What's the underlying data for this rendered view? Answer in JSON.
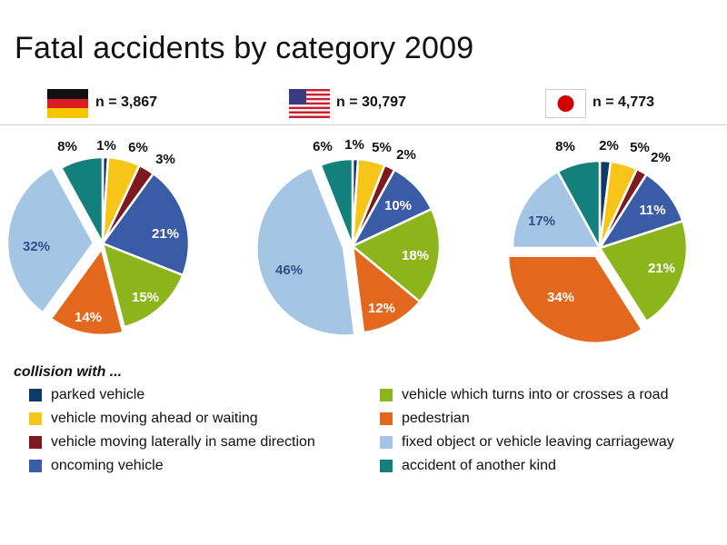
{
  "title": "Fatal accidents by category 2009",
  "legend_title": "collision with ...",
  "colors": {
    "parked": "#0f3a66",
    "ahead": "#f6c518",
    "lateral": "#7d1a1e",
    "oncoming": "#3a5ba6",
    "turns": "#8cb51c",
    "pedestrian": "#e3681e",
    "fixed": "#a4c6e4",
    "other": "#14807c"
  },
  "chart_data": [
    {
      "type": "pie",
      "country": "Germany",
      "flag_icon": "germany-flag-icon",
      "n_label": "n = 3,867",
      "slices": [
        {
          "category": "parked vehicle",
          "key": "parked",
          "value": 1,
          "label": "1%"
        },
        {
          "category": "vehicle moving ahead or waiting",
          "key": "ahead",
          "value": 6,
          "label": "6%"
        },
        {
          "category": "vehicle moving laterally in same direction",
          "key": "lateral",
          "value": 3,
          "label": "3%"
        },
        {
          "category": "oncoming vehicle",
          "key": "oncoming",
          "value": 21,
          "label": "21%"
        },
        {
          "category": "vehicle which turns into or crosses a road",
          "key": "turns",
          "value": 15,
          "label": "15%"
        },
        {
          "category": "pedestrian",
          "key": "pedestrian",
          "value": 14,
          "label": "14%"
        },
        {
          "category": "fixed object or vehicle leaving carriageway",
          "key": "fixed",
          "value": 32,
          "label": "32%"
        },
        {
          "category": "accident of another kind",
          "key": "other",
          "value": 8,
          "label": "8%"
        }
      ]
    },
    {
      "type": "pie",
      "country": "USA",
      "flag_icon": "usa-flag-icon",
      "n_label": "n = 30,797",
      "slices": [
        {
          "category": "parked vehicle",
          "key": "parked",
          "value": 1,
          "label": "1%"
        },
        {
          "category": "vehicle moving ahead or waiting",
          "key": "ahead",
          "value": 5,
          "label": "5%"
        },
        {
          "category": "vehicle moving laterally in same direction",
          "key": "lateral",
          "value": 2,
          "label": "2%"
        },
        {
          "category": "oncoming vehicle",
          "key": "oncoming",
          "value": 10,
          "label": "10%"
        },
        {
          "category": "vehicle which turns into or crosses a road",
          "key": "turns",
          "value": 18,
          "label": "18%"
        },
        {
          "category": "pedestrian",
          "key": "pedestrian",
          "value": 12,
          "label": "12%"
        },
        {
          "category": "fixed object or vehicle leaving carriageway",
          "key": "fixed",
          "value": 46,
          "label": "46%"
        },
        {
          "category": "accident of another kind",
          "key": "other",
          "value": 6,
          "label": "6%"
        }
      ]
    },
    {
      "type": "pie",
      "country": "Japan",
      "flag_icon": "japan-flag-icon",
      "n_label": "n = 4,773",
      "slices": [
        {
          "category": "parked vehicle",
          "key": "parked",
          "value": 2,
          "label": "2%"
        },
        {
          "category": "vehicle moving ahead or waiting",
          "key": "ahead",
          "value": 5,
          "label": "5%"
        },
        {
          "category": "vehicle moving laterally in same direction",
          "key": "lateral",
          "value": 2,
          "label": "2%"
        },
        {
          "category": "oncoming vehicle",
          "key": "oncoming",
          "value": 11,
          "label": "11%"
        },
        {
          "category": "vehicle which turns into or crosses a road",
          "key": "turns",
          "value": 21,
          "label": "21%"
        },
        {
          "category": "pedestrian",
          "key": "pedestrian",
          "value": 34,
          "label": "34%"
        },
        {
          "category": "fixed object or vehicle leaving carriageway",
          "key": "fixed",
          "value": 17,
          "label": "17%"
        },
        {
          "category": "accident of another kind",
          "key": "other",
          "value": 8,
          "label": "8%"
        }
      ]
    }
  ],
  "legend": [
    {
      "key": "parked",
      "label": "parked vehicle"
    },
    {
      "key": "ahead",
      "label": "vehicle moving ahead or waiting"
    },
    {
      "key": "lateral",
      "label": "vehicle moving laterally in same direction"
    },
    {
      "key": "oncoming",
      "label": "oncoming vehicle"
    },
    {
      "key": "turns",
      "label": "vehicle which turns into or crosses a road"
    },
    {
      "key": "pedestrian",
      "label": "pedestrian"
    },
    {
      "key": "fixed",
      "label": "fixed object or vehicle leaving carriageway"
    },
    {
      "key": "other",
      "label": "accident of another kind"
    }
  ]
}
